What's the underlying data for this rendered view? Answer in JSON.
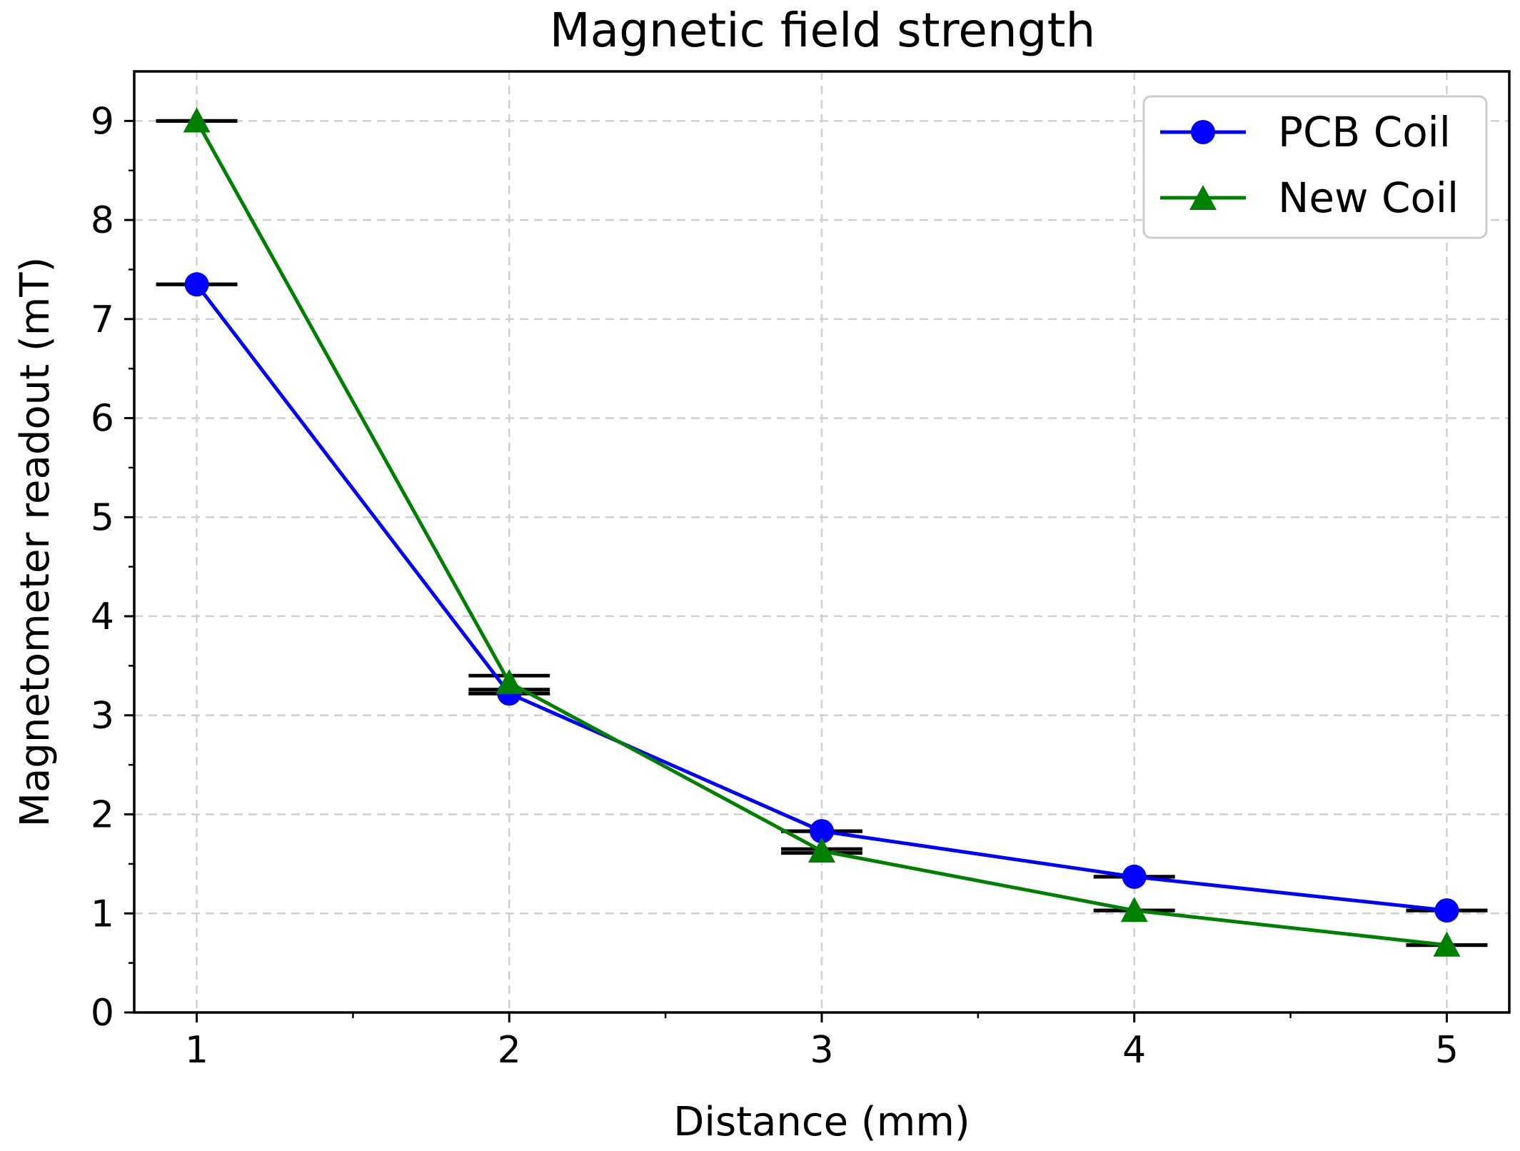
{
  "chart_data": {
    "type": "line",
    "title": "Magnetic field strength",
    "xlabel": "Distance (mm)",
    "ylabel": "Magnetometer readout (mT)",
    "x": [
      1,
      2,
      3,
      4,
      5
    ],
    "xlim": [
      0.8,
      5.2
    ],
    "ylim": [
      0,
      9.5
    ],
    "xticks": [
      "1",
      "2",
      "3",
      "4",
      "5"
    ],
    "yticks": [
      "0",
      "1",
      "2",
      "3",
      "4",
      "5",
      "6",
      "7",
      "8",
      "9"
    ],
    "grid": true,
    "legend_position": "top-right",
    "error_bar_half_width": 0.13,
    "series": [
      {
        "name": "PCB Coil",
        "color": "#0000ff",
        "marker": "circle",
        "values": [
          7.35,
          3.22,
          1.83,
          1.37,
          1.03
        ],
        "errors": [
          0.0,
          0.0,
          0.0,
          0.0,
          0.0
        ]
      },
      {
        "name": "New Coil",
        "color": "#008000",
        "marker": "triangle",
        "values": [
          9.0,
          3.33,
          1.63,
          1.03,
          0.68
        ],
        "errors": [
          0.0,
          0.07,
          0.02,
          0.0,
          0.0
        ]
      }
    ]
  }
}
